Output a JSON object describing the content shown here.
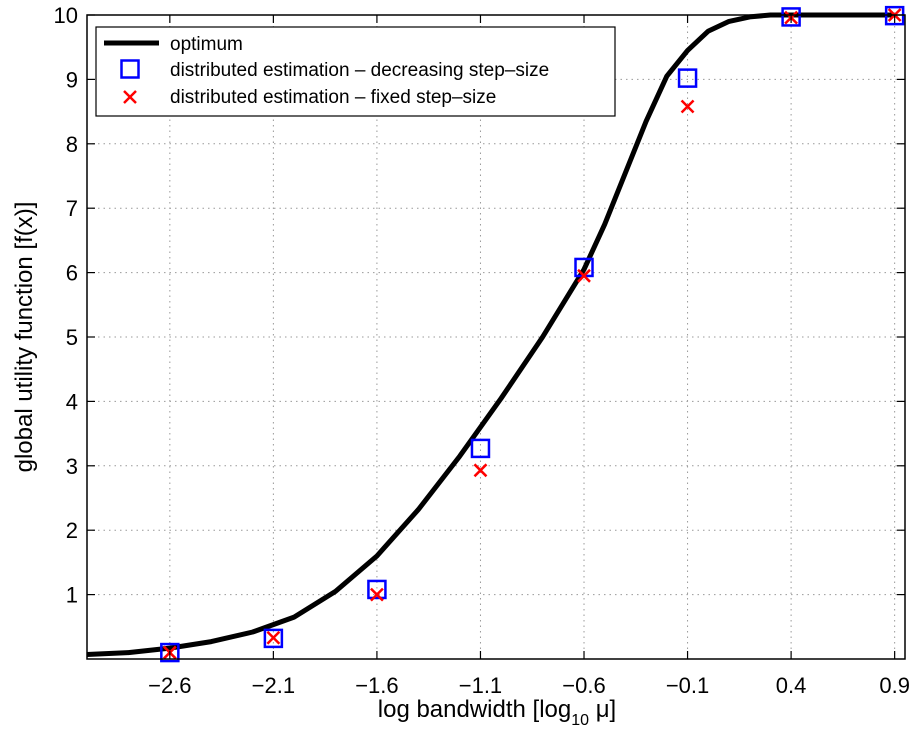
{
  "chart_data": {
    "type": "line",
    "xlabel": "log bandwidth [log",
    "xlabel_sub": "10",
    "xlabel_tail": " μ]",
    "ylabel": "global utility function [f(x)]",
    "xlim": [
      -3.0,
      0.95
    ],
    "ylim": [
      0,
      10
    ],
    "x_ticks": [
      -2.6,
      -2.1,
      -1.6,
      -1.1,
      -0.6,
      -0.1,
      0.4,
      0.9
    ],
    "x_tick_labels": [
      "−2.6",
      "−2.1",
      "−1.6",
      "−1.1",
      "−0.6",
      "−0.1",
      "0.4",
      "0.9"
    ],
    "y_ticks": [
      1,
      2,
      3,
      4,
      5,
      6,
      7,
      8,
      9,
      10
    ],
    "y_tick_labels": [
      "1",
      "2",
      "3",
      "4",
      "5",
      "6",
      "7",
      "8",
      "9",
      "10"
    ],
    "grid": true,
    "legend_position": "top-left",
    "series": [
      {
        "name": "optimum",
        "style": "line",
        "color": "#000000",
        "x": [
          -3.0,
          -2.8,
          -2.6,
          -2.4,
          -2.2,
          -2.0,
          -1.8,
          -1.6,
          -1.4,
          -1.2,
          -1.0,
          -0.8,
          -0.6,
          -0.5,
          -0.4,
          -0.3,
          -0.2,
          -0.1,
          0.0,
          0.1,
          0.2,
          0.3,
          0.4,
          0.9
        ],
        "y": [
          0.07,
          0.1,
          0.17,
          0.27,
          0.42,
          0.65,
          1.05,
          1.6,
          2.32,
          3.15,
          4.05,
          5.0,
          6.05,
          6.75,
          7.55,
          8.35,
          9.05,
          9.45,
          9.75,
          9.9,
          9.97,
          10.0,
          10.0,
          10.0
        ]
      },
      {
        "name": "distributed estimation – decreasing step–size",
        "style": "square",
        "color": "#0000ff",
        "x": [
          -2.6,
          -2.1,
          -1.6,
          -1.1,
          -0.6,
          -0.1,
          0.4,
          0.9
        ],
        "y": [
          0.1,
          0.32,
          1.08,
          3.27,
          6.08,
          9.02,
          9.97,
          9.99
        ]
      },
      {
        "name": "distributed estimation – fixed step–size",
        "style": "x",
        "color": "#ff0000",
        "x": [
          -2.6,
          -2.1,
          -1.6,
          -1.1,
          -0.6,
          -0.1,
          0.4,
          0.9
        ],
        "y": [
          0.1,
          0.33,
          1.0,
          2.93,
          5.95,
          8.58,
          9.96,
          10.0
        ]
      }
    ]
  }
}
